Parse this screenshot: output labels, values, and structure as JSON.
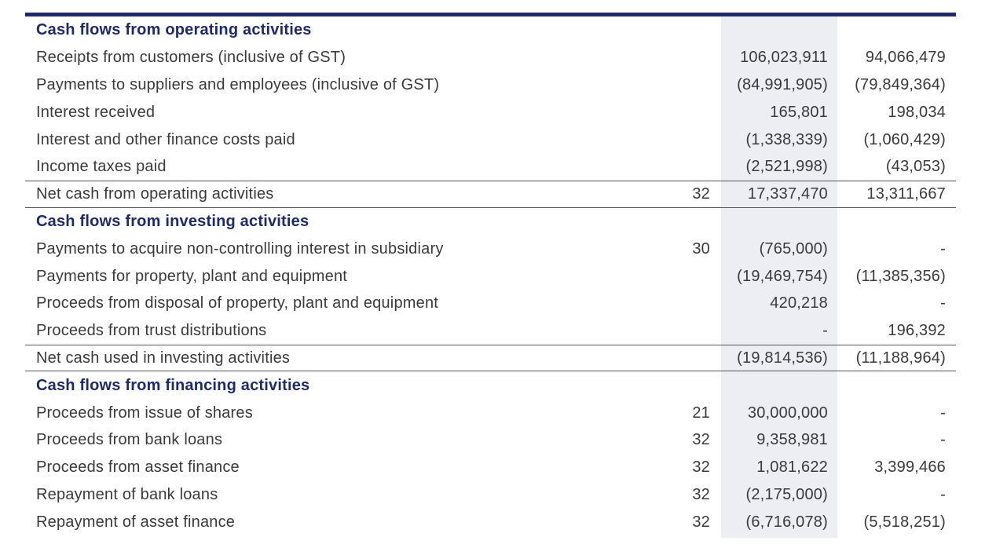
{
  "sections": {
    "operating": {
      "heading": "Cash flows from operating activities",
      "rows": [
        {
          "label": "Receipts from customers (inclusive of GST)",
          "note": "",
          "current": "106,023,911",
          "prior": "94,066,479"
        },
        {
          "label": "Payments to suppliers and employees (inclusive of GST)",
          "note": "",
          "current": "(84,991,905)",
          "prior": "(79,849,364)"
        },
        {
          "label": "Interest received",
          "note": "",
          "current": "165,801",
          "prior": "198,034"
        },
        {
          "label": "Interest and other finance costs paid",
          "note": "",
          "current": "(1,338,339)",
          "prior": "(1,060,429)"
        },
        {
          "label": "Income taxes paid",
          "note": "",
          "current": "(2,521,998)",
          "prior": "(43,053)"
        }
      ],
      "total": {
        "label": "Net cash from operating activities",
        "note": "32",
        "current": "17,337,470",
        "prior": "13,311,667"
      }
    },
    "investing": {
      "heading": "Cash flows from investing activities",
      "rows": [
        {
          "label": "Payments to acquire non-controlling interest in subsidiary",
          "note": "30",
          "current": "(765,000)",
          "prior": "-"
        },
        {
          "label": "Payments for property, plant and equipment",
          "note": "",
          "current": "(19,469,754)",
          "prior": "(11,385,356)"
        },
        {
          "label": "Proceeds from disposal of property, plant and equipment",
          "note": "",
          "current": "420,218",
          "prior": "-"
        },
        {
          "label": "Proceeds from trust distributions",
          "note": "",
          "current": "-",
          "prior": "196,392"
        }
      ],
      "total": {
        "label": "Net cash used in investing activities",
        "note": "",
        "current": "(19,814,536)",
        "prior": "(11,188,964)"
      }
    },
    "financing": {
      "heading": "Cash flows from financing activities",
      "rows": [
        {
          "label": "Proceeds from issue of shares",
          "note": "21",
          "current": "30,000,000",
          "prior": "-"
        },
        {
          "label": "Proceeds from bank loans",
          "note": "32",
          "current": "9,358,981",
          "prior": "-"
        },
        {
          "label": "Proceeds from asset finance",
          "note": "32",
          "current": "1,081,622",
          "prior": "3,399,466"
        },
        {
          "label": "Repayment of bank loans",
          "note": "32",
          "current": "(2,175,000)",
          "prior": "-"
        },
        {
          "label": "Repayment of asset finance",
          "note": "32",
          "current": "(6,716,078)",
          "prior": "(5,518,251)"
        }
      ]
    }
  }
}
